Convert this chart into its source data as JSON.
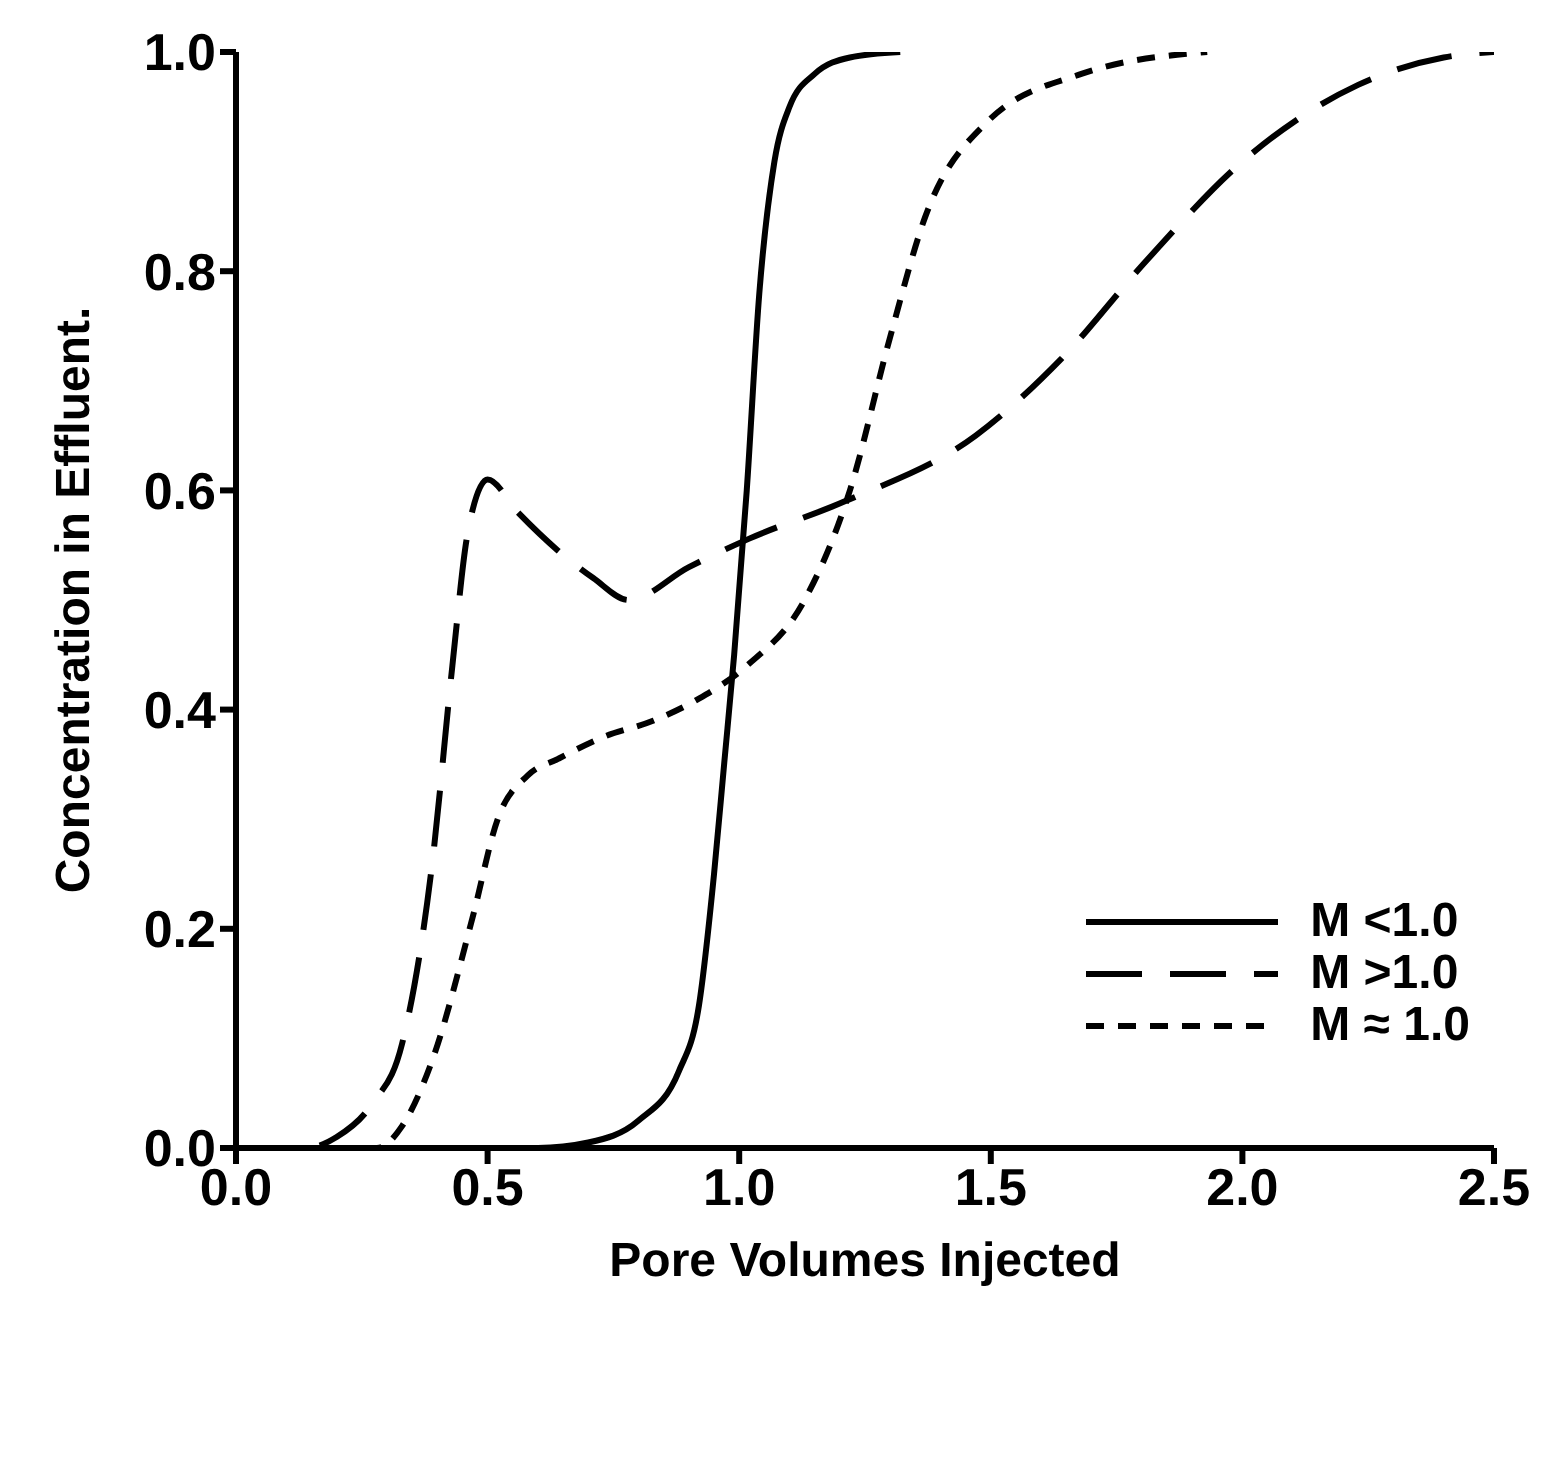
{
  "chart_data": {
    "type": "line",
    "xlabel": "Pore Volumes Injected",
    "ylabel": "Concentration in Effluent.",
    "xlim": [
      0,
      2.5
    ],
    "ylim": [
      0,
      1
    ],
    "xticks": [
      {
        "value": 0,
        "label": "0.0"
      },
      {
        "value": 0.5,
        "label": "0.5"
      },
      {
        "value": 1,
        "label": "1.0"
      },
      {
        "value": 1.5,
        "label": "1.5"
      },
      {
        "value": 2,
        "label": "2.0"
      },
      {
        "value": 2.5,
        "label": "2.5"
      }
    ],
    "yticks": [
      {
        "value": 0,
        "label": "0.0"
      },
      {
        "value": 0.2,
        "label": "0.2"
      },
      {
        "value": 0.4,
        "label": "0.4"
      },
      {
        "value": 0.6,
        "label": "0.6"
      },
      {
        "value": 0.8,
        "label": "0.8"
      },
      {
        "value": 1,
        "label": "1.0"
      }
    ],
    "grid": false,
    "legend": "right",
    "marker": "none",
    "series": [
      {
        "name": "M <1.0",
        "color": "#000000",
        "line_style": "solid",
        "x": [
          0,
          0.6,
          0.7,
          0.8,
          0.88,
          0.92,
          0.95,
          0.97,
          0.99,
          1.015,
          1.04,
          1.07,
          1.1,
          1.15,
          1.22,
          1.32
        ],
        "values": [
          0,
          0,
          0.005,
          0.025,
          0.07,
          0.13,
          0.25,
          0.35,
          0.45,
          0.6,
          0.78,
          0.9,
          0.95,
          0.98,
          0.995,
          1
        ]
      },
      {
        "name": "M >1.0",
        "color": "#000000",
        "line_style": "dashed",
        "x": [
          0,
          0.14,
          0.2,
          0.27,
          0.33,
          0.39,
          0.43,
          0.46,
          0.5,
          0.56,
          0.64,
          0.71,
          0.78,
          0.9,
          1.02,
          1.21,
          1.47,
          1.64,
          1.81,
          2,
          2.23,
          2.4,
          2.5
        ],
        "values": [
          0,
          0,
          0.01,
          0.04,
          0.095,
          0.26,
          0.44,
          0.56,
          0.61,
          0.58,
          0.545,
          0.52,
          0.5,
          0.53,
          0.556,
          0.59,
          0.65,
          0.72,
          0.81,
          0.9,
          0.97,
          0.995,
          1
        ]
      },
      {
        "name": "M ≈ 1.0",
        "color": "#000000",
        "line_style": "dotted",
        "x": [
          0,
          0.28,
          0.33,
          0.39,
          0.47,
          0.52,
          0.58,
          0.64,
          0.73,
          0.83,
          0.92,
          1.015,
          1.13,
          1.22,
          1.3,
          1.37,
          1.49,
          1.68,
          1.93
        ],
        "values": [
          0,
          0,
          0.02,
          0.08,
          0.21,
          0.3,
          0.34,
          0.355,
          0.375,
          0.39,
          0.41,
          0.44,
          0.5,
          0.6,
          0.74,
          0.85,
          0.935,
          0.98,
          1
        ]
      }
    ]
  }
}
